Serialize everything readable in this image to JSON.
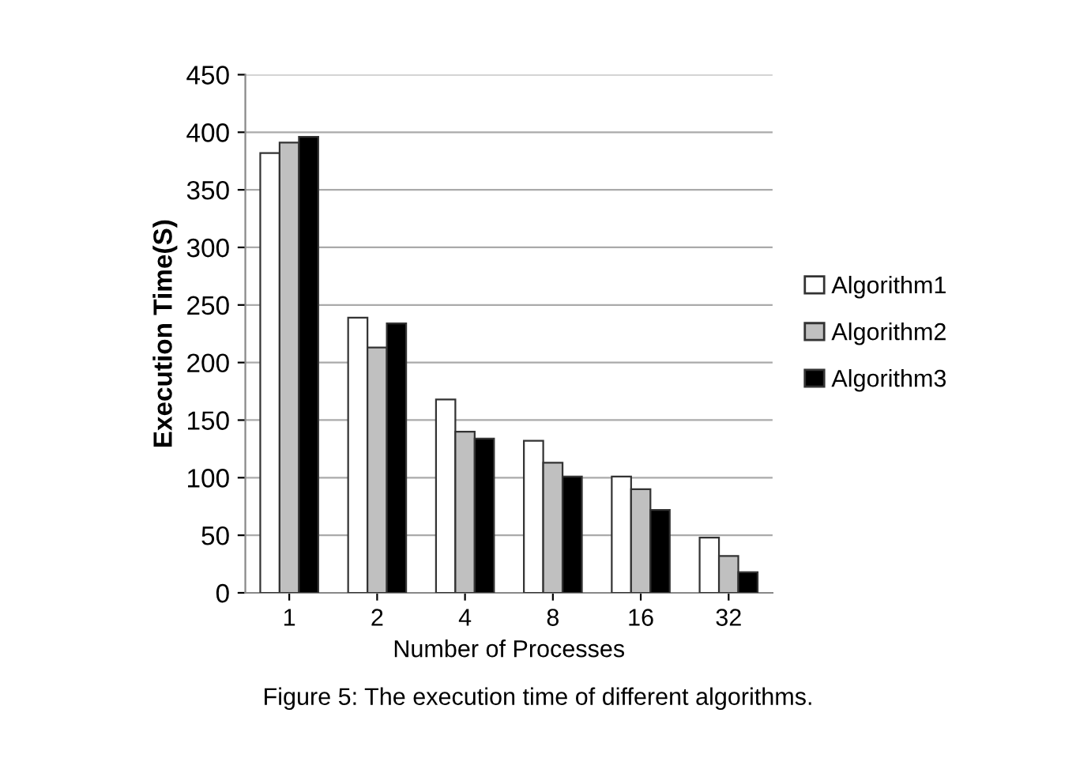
{
  "chart_data": {
    "type": "bar",
    "categories": [
      "1",
      "2",
      "4",
      "8",
      "16",
      "32"
    ],
    "series": [
      {
        "name": "Algorithm1",
        "color": "#ffffff",
        "values": [
          382,
          239,
          168,
          132,
          101,
          48
        ]
      },
      {
        "name": "Algorithm2",
        "color": "#c0c0c0",
        "values": [
          391,
          213,
          140,
          113,
          90,
          32
        ]
      },
      {
        "name": "Algorithm3",
        "color": "#000000",
        "values": [
          396,
          234,
          134,
          101,
          72,
          18
        ]
      }
    ],
    "xlabel": "Number of Processes",
    "ylabel": "Execution Time(S)",
    "ylim": [
      0,
      450
    ],
    "yticks": [
      0,
      50,
      100,
      150,
      200,
      250,
      300,
      350,
      400,
      450
    ],
    "grid": "y",
    "legend": "right",
    "annotations": [
      "Figure 5: The execution time of different algorithms."
    ]
  }
}
